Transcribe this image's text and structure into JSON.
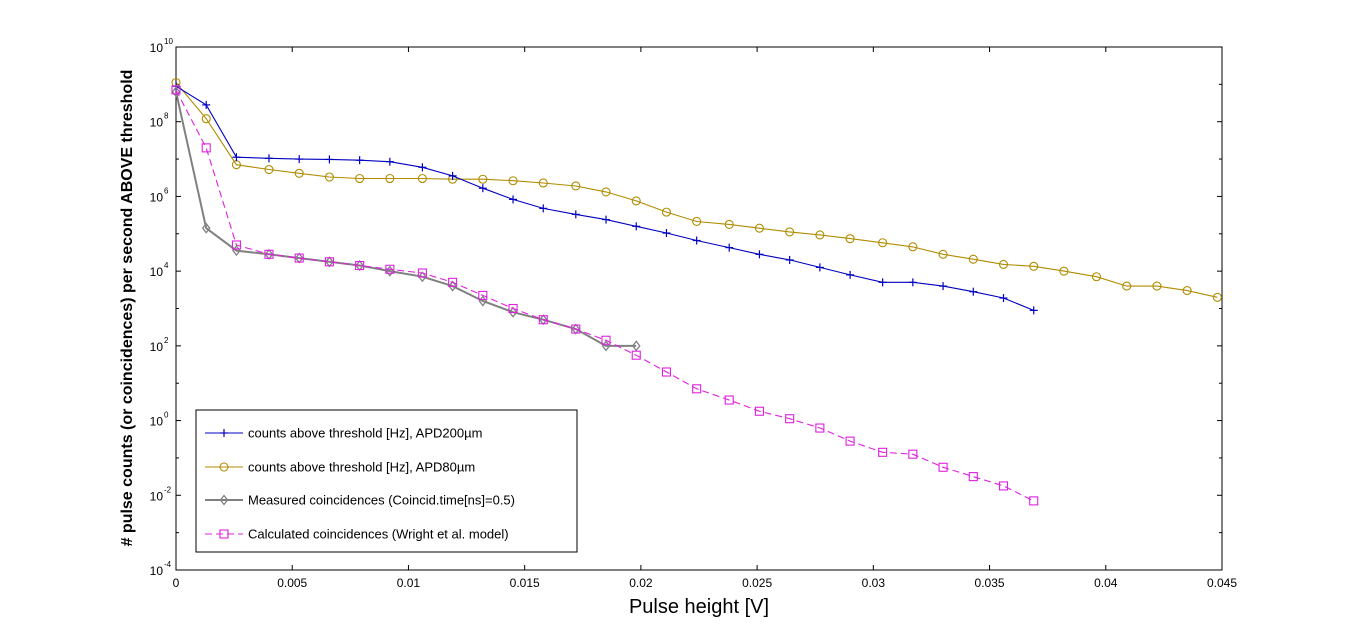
{
  "chart_data": {
    "type": "line",
    "title": "",
    "xlabel": "Pulse height [V]",
    "ylabel": "# pulse counts (or coincidences) per second ABOVE threshold",
    "xlim": [
      0,
      0.045
    ],
    "ylim_log10": [
      -4,
      10
    ],
    "yscale": "log",
    "x_ticks": [
      "0",
      "0.005",
      "0.01",
      "0.015",
      "0.02",
      "0.025",
      "0.03",
      "0.035",
      "0.04",
      "0.045"
    ],
    "x_tick_values": [
      0,
      0.005,
      0.01,
      0.015,
      0.02,
      0.025,
      0.03,
      0.035,
      0.04,
      0.045
    ],
    "y_tick_exponents": [
      -4,
      -2,
      0,
      2,
      4,
      6,
      8,
      10
    ],
    "y_tick_base": "10",
    "y_tick_exponent_labels": [
      "-4",
      "-2",
      "0",
      "2",
      "4",
      "6",
      "8",
      "10"
    ],
    "legend_position": "bottom-left",
    "series": [
      {
        "name": "counts above threshold [Hz], APD200µm",
        "color": "#0000c0",
        "marker": "plus",
        "dash": "solid",
        "x": [
          0,
          0.0013,
          0.0026,
          0.004,
          0.0053,
          0.0066,
          0.0079,
          0.0092,
          0.0106,
          0.0119,
          0.0132,
          0.0145,
          0.0158,
          0.0172,
          0.0185,
          0.0198,
          0.0211,
          0.0224,
          0.0238,
          0.0251,
          0.0264,
          0.0277,
          0.029,
          0.0304,
          0.0317,
          0.033,
          0.0343,
          0.0356,
          0.0369
        ],
        "log10y": [
          8.95,
          8.45,
          7.05,
          7.02,
          7.0,
          6.99,
          6.97,
          6.93,
          6.78,
          6.55,
          6.22,
          5.92,
          5.68,
          5.52,
          5.38,
          5.2,
          5.02,
          4.82,
          4.63,
          4.45,
          4.3,
          4.1,
          3.9,
          3.7,
          3.7,
          3.6,
          3.45,
          3.28,
          2.95
        ]
      },
      {
        "name": "counts above threshold [Hz], APD80µm",
        "color": "#b08c00",
        "marker": "circle",
        "dash": "solid",
        "x": [
          0,
          0.0013,
          0.0026,
          0.004,
          0.0053,
          0.0066,
          0.0079,
          0.0092,
          0.0106,
          0.0119,
          0.0132,
          0.0145,
          0.0158,
          0.0172,
          0.0185,
          0.0198,
          0.0211,
          0.0224,
          0.0238,
          0.0251,
          0.0264,
          0.0277,
          0.029,
          0.0304,
          0.0317,
          0.033,
          0.0343,
          0.0356,
          0.0369,
          0.0382,
          0.0396,
          0.0409,
          0.0422,
          0.0435,
          0.0448
        ],
        "log10y": [
          9.05,
          8.08,
          6.85,
          6.72,
          6.62,
          6.52,
          6.48,
          6.48,
          6.48,
          6.46,
          6.46,
          6.42,
          6.36,
          6.28,
          6.12,
          5.88,
          5.58,
          5.33,
          5.25,
          5.15,
          5.05,
          4.97,
          4.87,
          4.76,
          4.65,
          4.45,
          4.32,
          4.18,
          4.13,
          4.0,
          3.85,
          3.6,
          3.6,
          3.48,
          3.3
        ]
      },
      {
        "name": "Measured coincidences (Coincid.time[ns]=0.5)",
        "color": "#808080",
        "marker": "diamond",
        "dash": "solid",
        "x": [
          0,
          0.0013,
          0.0026,
          0.004,
          0.0053,
          0.0066,
          0.0079,
          0.0092,
          0.0106,
          0.0119,
          0.0132,
          0.0145,
          0.0158,
          0.0172,
          0.0185,
          0.0198
        ],
        "log10y": [
          8.8,
          5.15,
          4.55,
          4.45,
          4.35,
          4.25,
          4.15,
          4.0,
          3.85,
          3.6,
          3.2,
          2.9,
          2.7,
          2.45,
          2.0,
          2.0
        ]
      },
      {
        "name": "Calculated coincidences (Wright et al. model)",
        "color": "#e020e0",
        "marker": "square",
        "dash": "dashed",
        "x": [
          0,
          0.0013,
          0.0026,
          0.004,
          0.0053,
          0.0066,
          0.0079,
          0.0092,
          0.0106,
          0.0119,
          0.0132,
          0.0145,
          0.0158,
          0.0172,
          0.0185,
          0.0198,
          0.0211,
          0.0224,
          0.0238,
          0.0251,
          0.0264,
          0.0277,
          0.029,
          0.0304,
          0.0317,
          0.033,
          0.0343,
          0.0356,
          0.0369
        ],
        "log10y": [
          8.85,
          7.3,
          4.7,
          4.45,
          4.35,
          4.25,
          4.15,
          4.05,
          3.95,
          3.7,
          3.35,
          3.0,
          2.7,
          2.45,
          2.15,
          1.75,
          1.3,
          0.85,
          0.55,
          0.25,
          0.05,
          -0.2,
          -0.55,
          -0.85,
          -0.9,
          -1.25,
          -1.5,
          -1.75,
          -2.15
        ]
      }
    ]
  }
}
